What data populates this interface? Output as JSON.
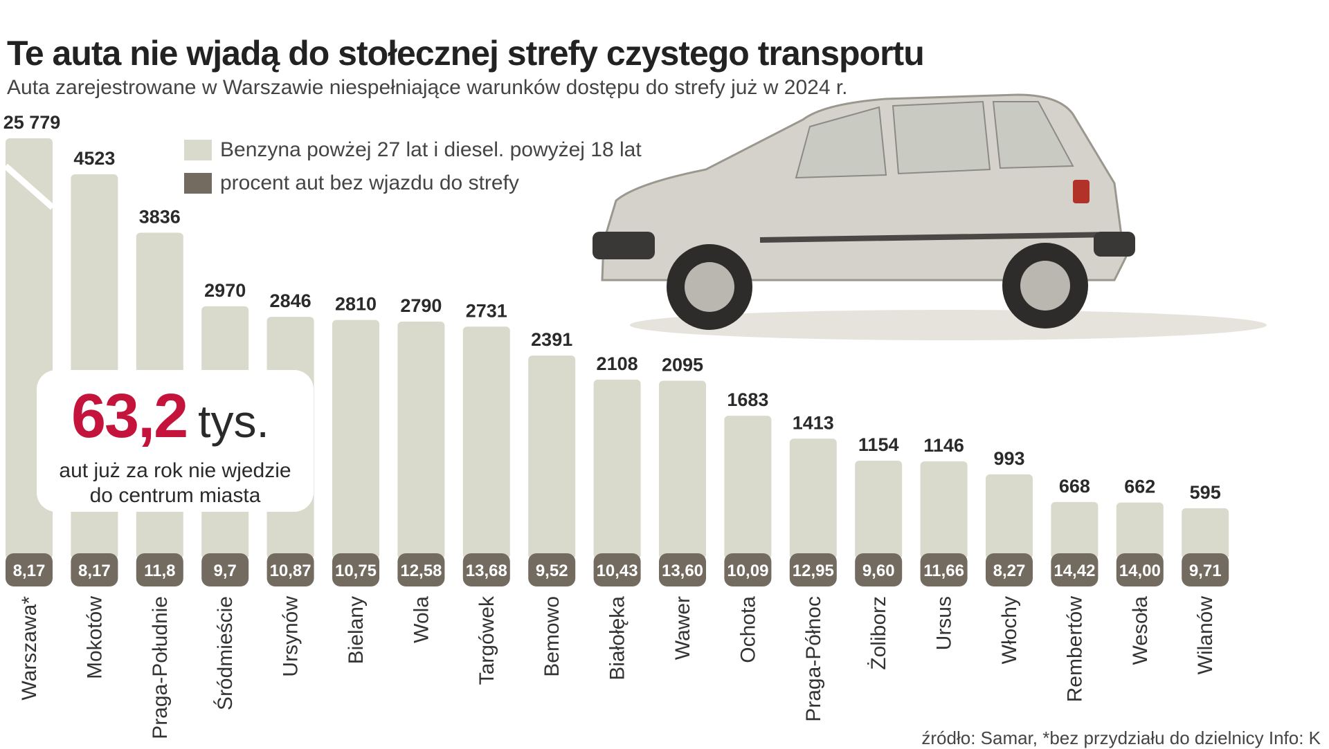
{
  "title": "Te auta nie wjadą do stołecznej strefy czystego transportu",
  "subtitle": "Auta zarejestrowane w Warszawie niespełniające warunków dostępu do strefy już w 2024 r.",
  "legend": [
    {
      "label": "Benzyna powżej 27 lat i diesel. powyżej 18 lat",
      "color": "#d9d9cc"
    },
    {
      "label": "procent aut bez wjazdu do strefy",
      "color": "#746b60"
    }
  ],
  "callout": {
    "value": "63,2",
    "unit": "tys.",
    "line1": "aut już za rok nie wjedzie",
    "line2": "do centrum miasta"
  },
  "source": "źródło: Samar, *bez przydziału do dzielnicy Info: K",
  "colors": {
    "bar": "#d9d9cc",
    "badge": "#746b60",
    "accent": "#c4143c"
  },
  "chart_data": {
    "type": "bar",
    "categories": [
      "Warszawa*",
      "Mokotów",
      "Praga-Południe",
      "Śródmieście",
      "Ursynów",
      "Bielany",
      "Wola",
      "Targówek",
      "Bemowo",
      "Białołęka",
      "Wawer",
      "Ochota",
      "Praga-Północ",
      "Żoliborz",
      "Ursus",
      "Włochy",
      "Rembertów",
      "Wesoła",
      "Wilanów"
    ],
    "series": [
      {
        "name": "Benzyna powżej 27 lat i diesel. powyżej 18 lat",
        "values": [
          25779,
          4523,
          3836,
          2970,
          2846,
          2810,
          2790,
          2731,
          2391,
          2108,
          2095,
          1683,
          1413,
          1154,
          1146,
          993,
          668,
          662,
          595
        ],
        "labels": [
          "25 779",
          "4523",
          "3836",
          "2970",
          "2846",
          "2810",
          "2790",
          "2731",
          "2391",
          "2108",
          "2095",
          "1683",
          "1413",
          "1154",
          "1146",
          "993",
          "668",
          "662",
          "595"
        ]
      },
      {
        "name": "procent aut bez wjazdu do strefy",
        "values": [
          8.17,
          8.17,
          11.8,
          9.7,
          10.87,
          10.75,
          12.58,
          13.68,
          9.52,
          10.43,
          13.6,
          10.09,
          12.95,
          9.6,
          11.66,
          8.27,
          14.42,
          14.0,
          9.71
        ],
        "labels": [
          "8,17",
          "8,17",
          "11,8",
          "9,7",
          "10,87",
          "10,75",
          "12,58",
          "13,68",
          "9,52",
          "10,43",
          "13,60",
          "10,09",
          "12,95",
          "9,60",
          "11,66",
          "8,27",
          "14,42",
          "14,00",
          "9,71"
        ]
      }
    ],
    "axis_break": "Warszawa*"
  }
}
